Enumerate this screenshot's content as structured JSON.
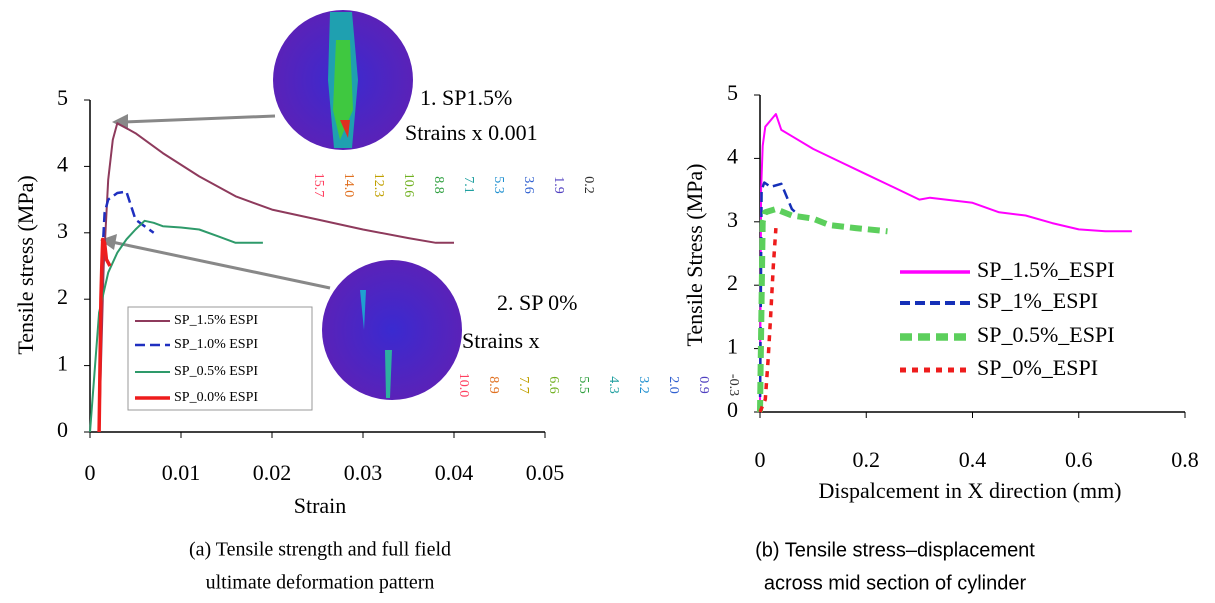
{
  "chart_data": [
    {
      "type": "line",
      "x_label": "Strain",
      "y_label": "Tensile stress (MPa)",
      "xlim": [
        0,
        0.05
      ],
      "ylim": [
        0,
        5
      ],
      "xticks": [
        0,
        0.01,
        0.02,
        0.03,
        0.04,
        0.05
      ],
      "yticks": [
        0,
        1,
        2,
        3,
        4,
        5
      ],
      "legend": "lower left",
      "series": [
        {
          "name": "SP_1.5% ESPI",
          "color": "#8e3a5c",
          "linestyle": "solid",
          "x": [
            0.001,
            0.0015,
            0.002,
            0.0025,
            0.003,
            0.005,
            0.008,
            0.012,
            0.016,
            0.02,
            0.025,
            0.03,
            0.035,
            0.038,
            0.04
          ],
          "values": [
            0,
            2.5,
            3.8,
            4.4,
            4.65,
            4.5,
            4.2,
            3.85,
            3.55,
            3.35,
            3.2,
            3.05,
            2.92,
            2.85,
            2.85
          ]
        },
        {
          "name": "SP_1.0% ESPI",
          "color": "#1f2fc0",
          "linestyle": "dashed",
          "x": [
            0.001,
            0.0013,
            0.0016,
            0.002,
            0.003,
            0.004,
            0.005,
            0.006,
            0.007
          ],
          "values": [
            0,
            2.5,
            3.3,
            3.5,
            3.6,
            3.62,
            3.2,
            3.1,
            3.0
          ]
        },
        {
          "name": "SP_0.5% ESPI",
          "color": "#2e9a6a",
          "linestyle": "solid",
          "x": [
            0,
            0.001,
            0.002,
            0.003,
            0.004,
            0.005,
            0.006,
            0.007,
            0.008,
            0.01,
            0.012,
            0.014,
            0.016,
            0.019
          ],
          "values": [
            0,
            1.8,
            2.4,
            2.7,
            2.9,
            3.05,
            3.18,
            3.15,
            3.1,
            3.08,
            3.05,
            2.95,
            2.85,
            2.85
          ]
        },
        {
          "name": "SP_0.0% ESPI",
          "color": "#ee1c1c",
          "linestyle": "thick",
          "x": [
            0.001,
            0.0011,
            0.0012,
            0.0013,
            0.0014,
            0.0016,
            0.0018,
            0.0022
          ],
          "values": [
            0,
            1,
            2,
            2.5,
            2.9,
            2.85,
            2.6,
            2.5
          ]
        }
      ],
      "annotations": [
        "1. SP1.5%",
        "Strains x 0.001",
        "2. SP 0%",
        "Strains x"
      ],
      "colorbars": [
        [
          "15.7",
          "14.0",
          "12.3",
          "10.6",
          "8.8",
          "7.1",
          "5.3",
          "3.6",
          "1.9",
          "0.2"
        ],
        [
          "10.0",
          "8.9",
          "7.7",
          "6.6",
          "5.5",
          "4.3",
          "3.2",
          "2.0",
          "0.9",
          "-0.3"
        ]
      ],
      "caption": [
        "(a)  Tensile strength and full field",
        "ultimate deformation pattern"
      ]
    },
    {
      "type": "line",
      "x_label": "Dispalcement in X direction (mm)",
      "y_label": "Tensile Stress (MPa)",
      "xlim": [
        0,
        0.8
      ],
      "ylim": [
        0,
        5
      ],
      "xticks": [
        0,
        0.2,
        0.4,
        0.6,
        0.8
      ],
      "yticks": [
        0,
        1,
        2,
        3,
        4,
        5
      ],
      "legend": "center right",
      "series": [
        {
          "name": "SP_1.5%_ESPI",
          "color": "#ff00ff",
          "linestyle": "solid",
          "x": [
            0,
            0.002,
            0.005,
            0.01,
            0.02,
            0.03,
            0.04,
            0.06,
            0.1,
            0.15,
            0.2,
            0.25,
            0.3,
            0.32,
            0.4,
            0.45,
            0.5,
            0.55,
            0.6,
            0.65,
            0.7
          ],
          "values": [
            0,
            3.5,
            4.2,
            4.5,
            4.6,
            4.7,
            4.45,
            4.35,
            4.15,
            3.95,
            3.75,
            3.55,
            3.35,
            3.38,
            3.3,
            3.15,
            3.1,
            2.98,
            2.88,
            2.85,
            2.85
          ]
        },
        {
          "name": "SP_1%_ESPI",
          "color": "#1530b8",
          "linestyle": "dashed",
          "x": [
            0,
            0.003,
            0.008,
            0.02,
            0.04,
            0.06,
            0.08
          ],
          "values": [
            0,
            3.5,
            3.62,
            3.55,
            3.6,
            3.2,
            3.05
          ]
        },
        {
          "name": "SP_0.5%_ESPI",
          "color": "#5ccf5c",
          "linestyle": "dashed-thick",
          "x": [
            0,
            0.005,
            0.01,
            0.03,
            0.06,
            0.1,
            0.13,
            0.18,
            0.24
          ],
          "values": [
            0,
            3.0,
            3.15,
            3.2,
            3.1,
            3.05,
            2.95,
            2.9,
            2.85
          ]
        },
        {
          "name": "SP_0%_ESPI",
          "color": "#ee1c1c",
          "linestyle": "dotted",
          "x": [
            0,
            0.01,
            0.015,
            0.02,
            0.025,
            0.03
          ],
          "values": [
            0,
            0.2,
            0.8,
            1.5,
            2.3,
            2.9
          ]
        }
      ],
      "caption": [
        "(b) Tensile stress–displacement",
        "across mid section of cylinder"
      ]
    }
  ]
}
